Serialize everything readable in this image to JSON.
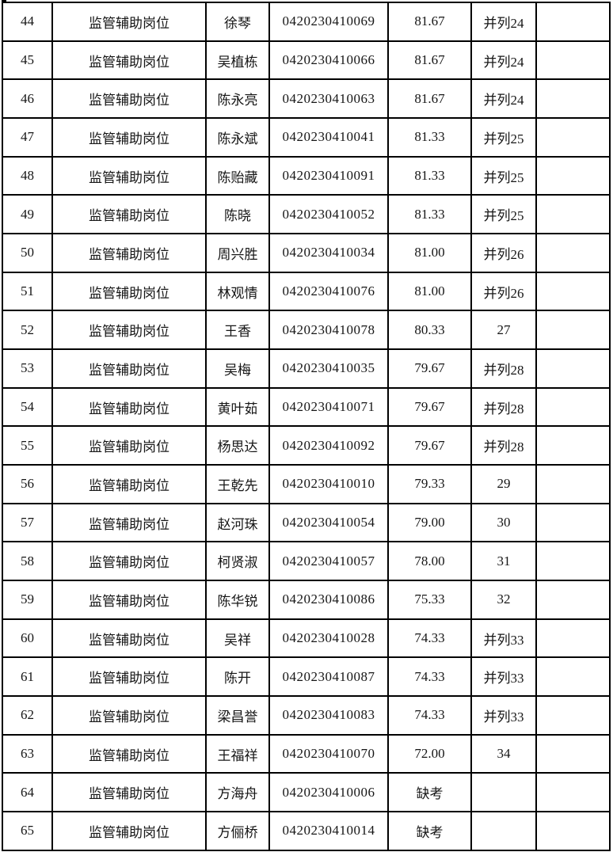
{
  "colors": {
    "background": "#ffffff",
    "border": "#000000",
    "text": "#161616"
  },
  "table": {
    "rows": [
      {
        "number": "44",
        "position": "监管辅助岗位",
        "name": "徐琴",
        "exam_no": "0420230410069",
        "score": "81.67",
        "rank": "并列24",
        "note": ""
      },
      {
        "number": "45",
        "position": "监管辅助岗位",
        "name": "吴植栋",
        "exam_no": "0420230410066",
        "score": "81.67",
        "rank": "并列24",
        "note": ""
      },
      {
        "number": "46",
        "position": "监管辅助岗位",
        "name": "陈永亮",
        "exam_no": "0420230410063",
        "score": "81.67",
        "rank": "并列24",
        "note": ""
      },
      {
        "number": "47",
        "position": "监管辅助岗位",
        "name": "陈永斌",
        "exam_no": "0420230410041",
        "score": "81.33",
        "rank": "并列25",
        "note": ""
      },
      {
        "number": "48",
        "position": "监管辅助岗位",
        "name": "陈贻藏",
        "exam_no": "0420230410091",
        "score": "81.33",
        "rank": "并列25",
        "note": ""
      },
      {
        "number": "49",
        "position": "监管辅助岗位",
        "name": "陈晓",
        "exam_no": "0420230410052",
        "score": "81.33",
        "rank": "并列25",
        "note": ""
      },
      {
        "number": "50",
        "position": "监管辅助岗位",
        "name": "周兴胜",
        "exam_no": "0420230410034",
        "score": "81.00",
        "rank": "并列26",
        "note": ""
      },
      {
        "number": "51",
        "position": "监管辅助岗位",
        "name": "林观情",
        "exam_no": "0420230410076",
        "score": "81.00",
        "rank": "并列26",
        "note": ""
      },
      {
        "number": "52",
        "position": "监管辅助岗位",
        "name": "王香",
        "exam_no": "0420230410078",
        "score": "80.33",
        "rank": "27",
        "note": ""
      },
      {
        "number": "53",
        "position": "监管辅助岗位",
        "name": "吴梅",
        "exam_no": "0420230410035",
        "score": "79.67",
        "rank": "并列28",
        "note": ""
      },
      {
        "number": "54",
        "position": "监管辅助岗位",
        "name": "黄叶茹",
        "exam_no": "0420230410071",
        "score": "79.67",
        "rank": "并列28",
        "note": ""
      },
      {
        "number": "55",
        "position": "监管辅助岗位",
        "name": "杨思达",
        "exam_no": "0420230410092",
        "score": "79.67",
        "rank": "并列28",
        "note": ""
      },
      {
        "number": "56",
        "position": "监管辅助岗位",
        "name": "王乾先",
        "exam_no": "0420230410010",
        "score": "79.33",
        "rank": "29",
        "note": ""
      },
      {
        "number": "57",
        "position": "监管辅助岗位",
        "name": "赵河珠",
        "exam_no": "0420230410054",
        "score": "79.00",
        "rank": "30",
        "note": ""
      },
      {
        "number": "58",
        "position": "监管辅助岗位",
        "name": "柯贤淑",
        "exam_no": "0420230410057",
        "score": "78.00",
        "rank": "31",
        "note": ""
      },
      {
        "number": "59",
        "position": "监管辅助岗位",
        "name": "陈华锐",
        "exam_no": "0420230410086",
        "score": "75.33",
        "rank": "32",
        "note": ""
      },
      {
        "number": "60",
        "position": "监管辅助岗位",
        "name": "吴祥",
        "exam_no": "0420230410028",
        "score": "74.33",
        "rank": "并列33",
        "note": ""
      },
      {
        "number": "61",
        "position": "监管辅助岗位",
        "name": "陈开",
        "exam_no": "0420230410087",
        "score": "74.33",
        "rank": "并列33",
        "note": ""
      },
      {
        "number": "62",
        "position": "监管辅助岗位",
        "name": "梁昌誉",
        "exam_no": "0420230410083",
        "score": "74.33",
        "rank": "并列33",
        "note": ""
      },
      {
        "number": "63",
        "position": "监管辅助岗位",
        "name": "王福祥",
        "exam_no": "0420230410070",
        "score": "72.00",
        "rank": "34",
        "note": ""
      },
      {
        "number": "64",
        "position": "监管辅助岗位",
        "name": "方海舟",
        "exam_no": "0420230410006",
        "score": "缺考",
        "rank": "",
        "note": ""
      },
      {
        "number": "65",
        "position": "监管辅助岗位",
        "name": "方俪桥",
        "exam_no": "0420230410014",
        "score": "缺考",
        "rank": "",
        "note": ""
      }
    ]
  }
}
